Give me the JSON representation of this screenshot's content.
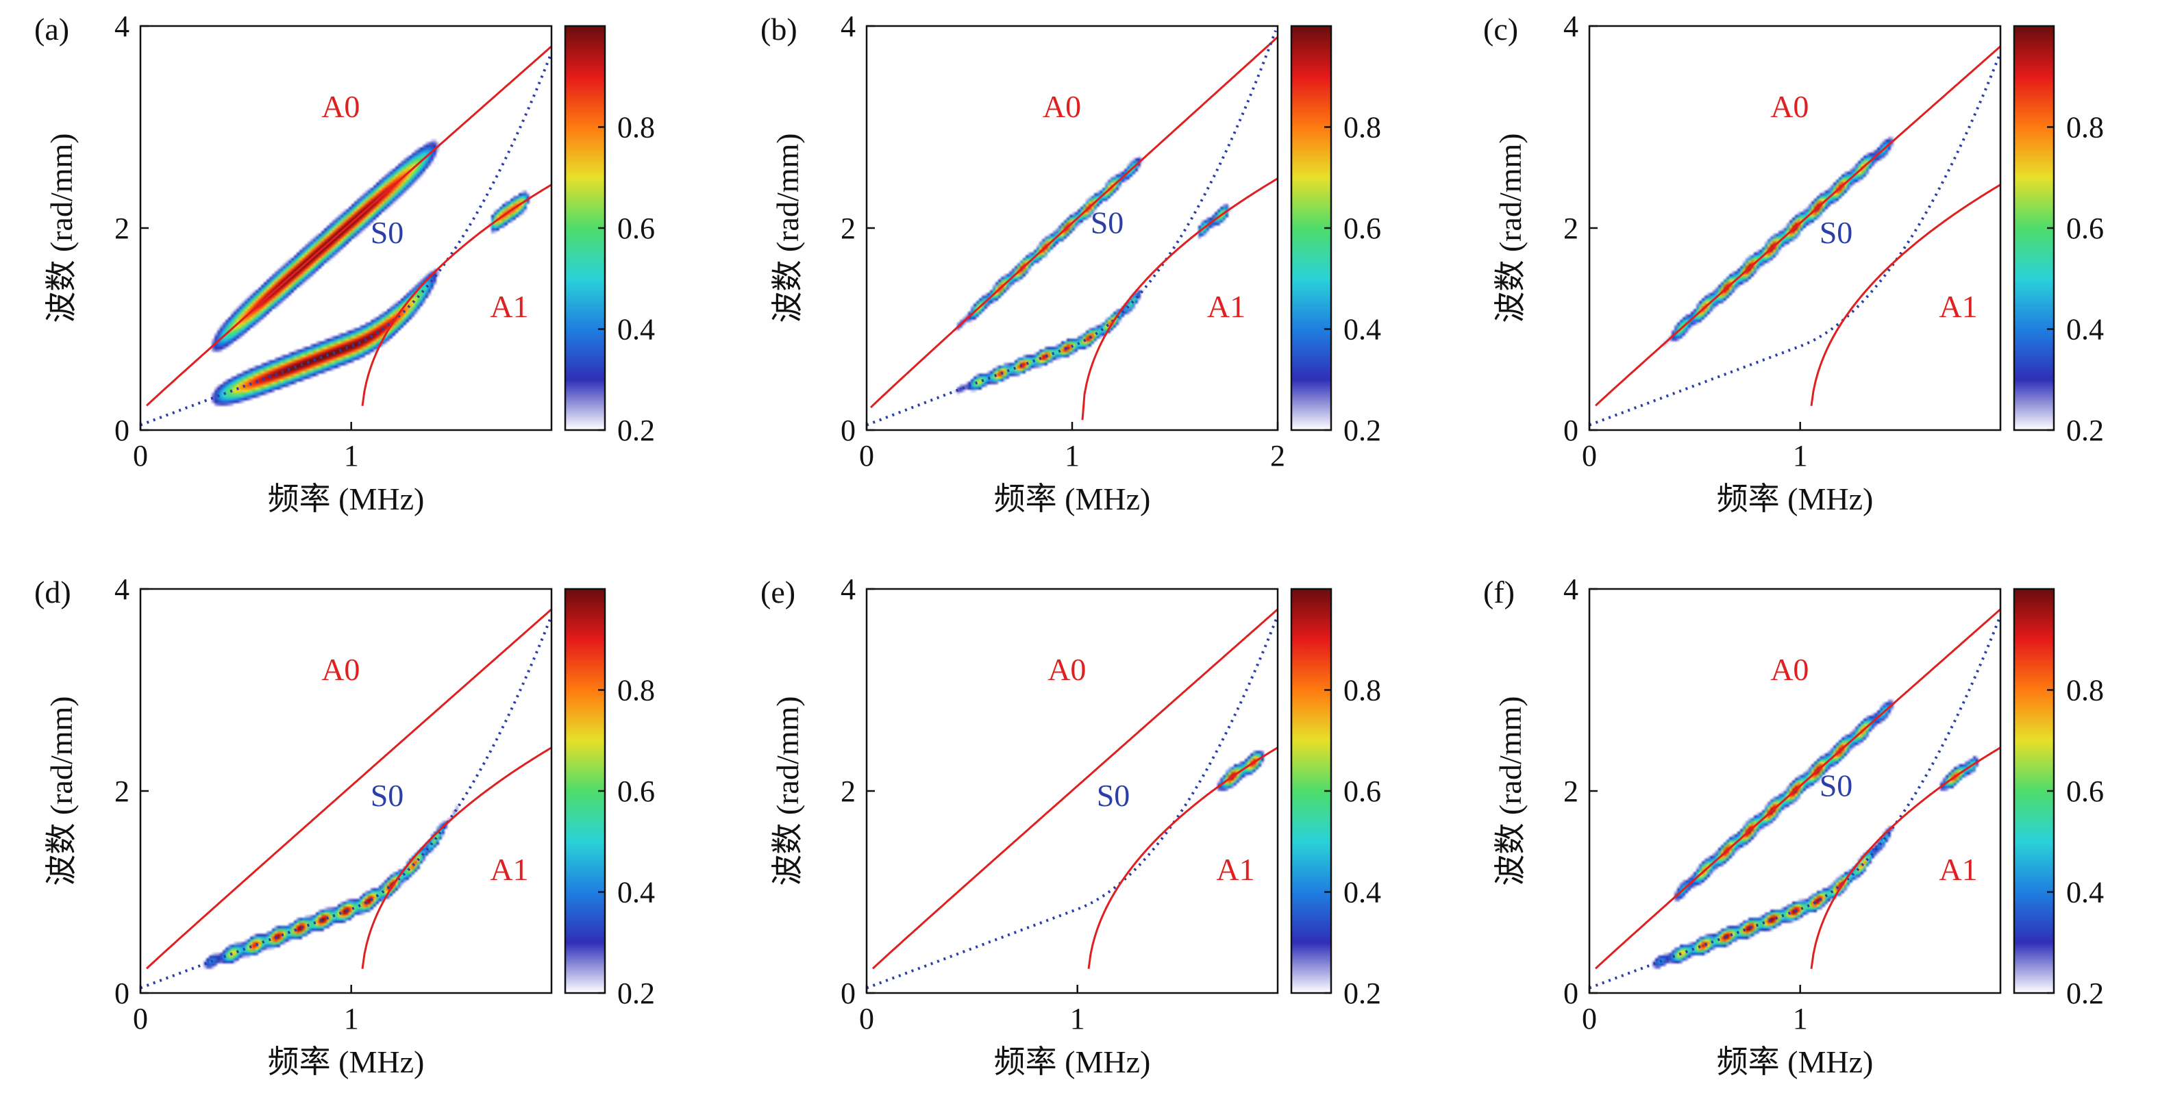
{
  "figure": {
    "xlabel": "频率 (MHz)",
    "ylabel": "波数 (rad/mm)",
    "colorbar_ticks": [
      "0.2",
      "0.4",
      "0.6",
      "0.8"
    ],
    "colormap": [
      "#ffffff",
      "#2f2fb8",
      "#1f7fe0",
      "#2ad2d8",
      "#4fdc6a",
      "#e6e02a",
      "#ff7a10",
      "#e41a1a",
      "#6a0d0d"
    ],
    "colorbar_range": [
      0.2,
      1.0
    ],
    "curve_colors": {
      "A0": "#e02020",
      "S0": "#2a3fa8",
      "A1": "#e02020"
    },
    "background": "#ffffff",
    "grid": false
  },
  "chart_data": [
    {
      "panel": "(a)",
      "type": "heatmap",
      "xlim": [
        0,
        1.95
      ],
      "ylim": [
        0,
        4
      ],
      "xticks": [
        "0",
        "1"
      ],
      "yticks": [
        "0",
        "2",
        "4"
      ],
      "labels": [
        {
          "text": "A0",
          "x": 0.95,
          "y": 3.1
        },
        {
          "text": "S0",
          "x": 1.17,
          "y": 1.85
        },
        {
          "text": "A1",
          "x": 1.75,
          "y": 1.12
        }
      ],
      "blobs": [
        {
          "mode": "A0",
          "x0": 0.3,
          "x1": 1.45,
          "amp": 1.0,
          "width": 0.22,
          "smooth": true
        },
        {
          "mode": "S0",
          "x0": 0.3,
          "x1": 1.45,
          "amp": 1.0,
          "width": 0.2,
          "smooth": true
        },
        {
          "mode": "A1",
          "x0": 1.65,
          "x1": 1.85,
          "amp": 0.85,
          "width": 0.15,
          "smooth": true
        }
      ]
    },
    {
      "panel": "(b)",
      "type": "heatmap",
      "xlim": [
        0,
        2
      ],
      "ylim": [
        0,
        4
      ],
      "xticks": [
        "0",
        "1",
        "2"
      ],
      "yticks": [
        "0",
        "2",
        "4"
      ],
      "labels": [
        {
          "text": "A0",
          "x": 0.95,
          "y": 3.1
        },
        {
          "text": "S0",
          "x": 1.17,
          "y": 1.95
        },
        {
          "text": "A1",
          "x": 1.75,
          "y": 1.12
        }
      ],
      "blobs": [
        {
          "mode": "A0",
          "x0": 0.4,
          "x1": 1.4,
          "amp": 0.95,
          "width": 0.12,
          "smooth": false
        },
        {
          "mode": "S0",
          "x0": 0.4,
          "x1": 1.4,
          "amp": 0.95,
          "width": 0.11,
          "smooth": false
        },
        {
          "mode": "A1",
          "x0": 1.6,
          "x1": 1.78,
          "amp": 0.7,
          "width": 0.12,
          "smooth": false
        }
      ]
    },
    {
      "panel": "(c)",
      "type": "heatmap",
      "xlim": [
        0,
        1.95
      ],
      "ylim": [
        0,
        4
      ],
      "xticks": [
        "0",
        "1"
      ],
      "yticks": [
        "0",
        "2",
        "4"
      ],
      "labels": [
        {
          "text": "A0",
          "x": 0.95,
          "y": 3.1
        },
        {
          "text": "S0",
          "x": 1.17,
          "y": 1.85
        },
        {
          "text": "A1",
          "x": 1.75,
          "y": 1.12
        }
      ],
      "blobs": [
        {
          "mode": "A0",
          "x0": 0.3,
          "x1": 1.5,
          "amp": 1.0,
          "width": 0.14,
          "smooth": false
        }
      ]
    },
    {
      "panel": "(d)",
      "type": "heatmap",
      "xlim": [
        0,
        1.95
      ],
      "ylim": [
        0,
        4
      ],
      "xticks": [
        "0",
        "1"
      ],
      "yticks": [
        "0",
        "2",
        "4"
      ],
      "labels": [
        {
          "text": "A0",
          "x": 0.95,
          "y": 3.1
        },
        {
          "text": "S0",
          "x": 1.17,
          "y": 1.85
        },
        {
          "text": "A1",
          "x": 1.75,
          "y": 1.12
        }
      ],
      "blobs": [
        {
          "mode": "S0",
          "x0": 0.25,
          "x1": 1.55,
          "amp": 1.0,
          "width": 0.13,
          "smooth": false
        }
      ]
    },
    {
      "panel": "(e)",
      "type": "heatmap",
      "xlim": [
        0,
        1.95
      ],
      "ylim": [
        0,
        4
      ],
      "xticks": [
        "0",
        "1"
      ],
      "yticks": [
        "0",
        "2",
        "4"
      ],
      "labels": [
        {
          "text": "A0",
          "x": 0.95,
          "y": 3.1
        },
        {
          "text": "S0",
          "x": 1.17,
          "y": 1.85
        },
        {
          "text": "A1",
          "x": 1.75,
          "y": 1.12
        }
      ],
      "blobs": [
        {
          "mode": "A1",
          "x0": 1.65,
          "x1": 1.9,
          "amp": 1.0,
          "width": 0.13,
          "smooth": false
        }
      ]
    },
    {
      "panel": "(f)",
      "type": "heatmap",
      "xlim": [
        0,
        1.95
      ],
      "ylim": [
        0,
        4
      ],
      "xticks": [
        "0",
        "1"
      ],
      "yticks": [
        "0",
        "2",
        "4"
      ],
      "labels": [
        {
          "text": "A0",
          "x": 0.95,
          "y": 3.1
        },
        {
          "text": "S0",
          "x": 1.17,
          "y": 1.95
        },
        {
          "text": "A1",
          "x": 1.75,
          "y": 1.12
        }
      ],
      "blobs": [
        {
          "mode": "A0",
          "x0": 0.35,
          "x1": 1.5,
          "amp": 1.0,
          "width": 0.14,
          "smooth": false
        },
        {
          "mode": "S0",
          "x0": 0.25,
          "x1": 1.5,
          "amp": 1.0,
          "width": 0.12,
          "smooth": false
        },
        {
          "mode": "A1",
          "x0": 1.65,
          "x1": 1.85,
          "amp": 0.9,
          "width": 0.12,
          "smooth": false
        }
      ]
    }
  ]
}
